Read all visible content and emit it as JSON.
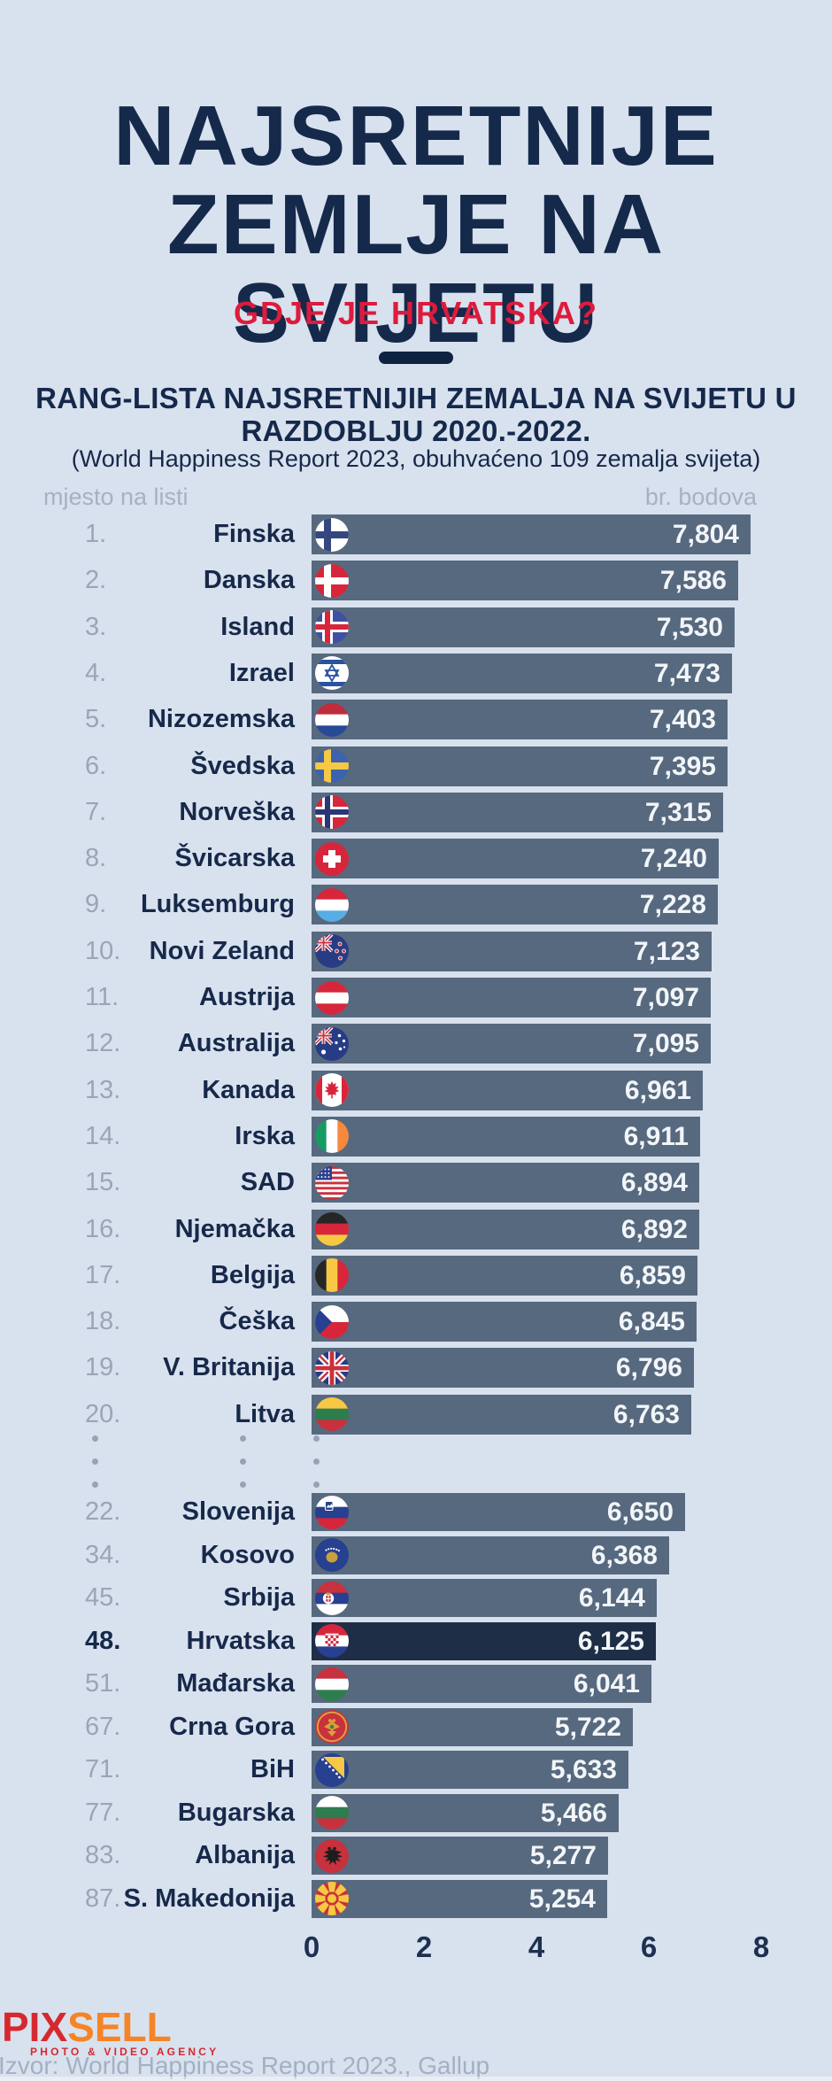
{
  "header": {
    "title": "NAJSRETNIJE\nZEMLJE NA\nSVIJETU",
    "question": "GDJE JE HRVATSKA?",
    "ranking_heading": "RANG-LISTA NAJSRETNIJIH ZEMALJA NA SVIJETU U\nRAZDOBLJU 2020.-2022.",
    "ranking_note": "(World Happiness Report 2023, obuhvaćeno 109 zemalja svijeta)"
  },
  "colors": {
    "background": "#d8e1ee",
    "navy_text": "#15294b",
    "accent_red": "#dd1b3c",
    "bar": "#57697e",
    "bar_highlight": "#1f2e47",
    "rank_gray": "#9aa5b7",
    "value_text": "#f2f5f9",
    "source_gray": "#a4b0c2",
    "logo_red": "#d5292f",
    "logo_orange": "#f58426"
  },
  "chart_data": {
    "type": "bar",
    "orientation": "horizontal",
    "title": "RANG-LISTA NAJSRETNIJIH ZEMALJA NA SVIJETU U RAZDOBLJU 2020.-2022.",
    "subtitle": "(World Happiness Report 2023, obuhvaćeno 109 zemalja svijeta)",
    "columns": {
      "rank": "mjesto na listi",
      "score": "br. bodova"
    },
    "value_axis": {
      "min": 0,
      "max": 8,
      "ticks": [
        0,
        2,
        4,
        6,
        8
      ]
    },
    "legend": "none",
    "highlight_country": "Hrvatska",
    "bar_color": "#57697e",
    "highlight_color": "#1f2e47",
    "ellipsis_between_sections": true,
    "rows": [
      {
        "rank": "1.",
        "country": "Finska",
        "flag": "fi",
        "score": 7.804,
        "score_label": "7,804",
        "section": 1
      },
      {
        "rank": "2.",
        "country": "Danska",
        "flag": "dk",
        "score": 7.586,
        "score_label": "7,586",
        "section": 1
      },
      {
        "rank": "3.",
        "country": "Island",
        "flag": "is",
        "score": 7.53,
        "score_label": "7,530",
        "section": 1
      },
      {
        "rank": "4.",
        "country": "Izrael",
        "flag": "il",
        "score": 7.473,
        "score_label": "7,473",
        "section": 1
      },
      {
        "rank": "5.",
        "country": "Nizozemska",
        "flag": "nl",
        "score": 7.403,
        "score_label": "7,403",
        "section": 1
      },
      {
        "rank": "6.",
        "country": "Švedska",
        "flag": "se",
        "score": 7.395,
        "score_label": "7,395",
        "section": 1
      },
      {
        "rank": "7.",
        "country": "Norveška",
        "flag": "no",
        "score": 7.315,
        "score_label": "7,315",
        "section": 1
      },
      {
        "rank": "8.",
        "country": "Švicarska",
        "flag": "ch",
        "score": 7.24,
        "score_label": "7,240",
        "section": 1
      },
      {
        "rank": "9.",
        "country": "Luksemburg",
        "flag": "lu",
        "score": 7.228,
        "score_label": "7,228",
        "section": 1
      },
      {
        "rank": "10.",
        "country": "Novi Zeland",
        "flag": "nz",
        "score": 7.123,
        "score_label": "7,123",
        "section": 1
      },
      {
        "rank": "11.",
        "country": "Austrija",
        "flag": "at",
        "score": 7.097,
        "score_label": "7,097",
        "section": 1
      },
      {
        "rank": "12.",
        "country": "Australija",
        "flag": "au",
        "score": 7.095,
        "score_label": "7,095",
        "section": 1
      },
      {
        "rank": "13.",
        "country": "Kanada",
        "flag": "ca",
        "score": 6.961,
        "score_label": "6,961",
        "section": 1
      },
      {
        "rank": "14.",
        "country": "Irska",
        "flag": "ie",
        "score": 6.911,
        "score_label": "6,911",
        "section": 1
      },
      {
        "rank": "15.",
        "country": "SAD",
        "flag": "us",
        "score": 6.894,
        "score_label": "6,894",
        "section": 1
      },
      {
        "rank": "16.",
        "country": "Njemačka",
        "flag": "de",
        "score": 6.892,
        "score_label": "6,892",
        "section": 1
      },
      {
        "rank": "17.",
        "country": "Belgija",
        "flag": "be",
        "score": 6.859,
        "score_label": "6,859",
        "section": 1
      },
      {
        "rank": "18.",
        "country": "Češka",
        "flag": "cz",
        "score": 6.845,
        "score_label": "6,845",
        "section": 1
      },
      {
        "rank": "19.",
        "country": "V. Britanija",
        "flag": "gb",
        "score": 6.796,
        "score_label": "6,796",
        "section": 1
      },
      {
        "rank": "20.",
        "country": "Litva",
        "flag": "lt",
        "score": 6.763,
        "score_label": "6,763",
        "section": 1
      },
      {
        "rank": "22.",
        "country": "Slovenija",
        "flag": "si",
        "score": 6.65,
        "score_label": "6,650",
        "section": 2
      },
      {
        "rank": "34.",
        "country": "Kosovo",
        "flag": "xk",
        "score": 6.368,
        "score_label": "6,368",
        "section": 2
      },
      {
        "rank": "45.",
        "country": "Srbija",
        "flag": "rs",
        "score": 6.144,
        "score_label": "6,144",
        "section": 2
      },
      {
        "rank": "48.",
        "country": "Hrvatska",
        "flag": "hr",
        "score": 6.125,
        "score_label": "6,125",
        "section": 2,
        "highlight": true
      },
      {
        "rank": "51.",
        "country": "Mađarska",
        "flag": "hu",
        "score": 6.041,
        "score_label": "6,041",
        "section": 2
      },
      {
        "rank": "67.",
        "country": "Crna Gora",
        "flag": "me",
        "score": 5.722,
        "score_label": "5,722",
        "section": 2
      },
      {
        "rank": "71.",
        "country": "BiH",
        "flag": "ba",
        "score": 5.633,
        "score_label": "5,633",
        "section": 2
      },
      {
        "rank": "77.",
        "country": "Bugarska",
        "flag": "bg",
        "score": 5.466,
        "score_label": "5,466",
        "section": 2
      },
      {
        "rank": "83.",
        "country": "Albanija",
        "flag": "al",
        "score": 5.277,
        "score_label": "5,277",
        "section": 2
      },
      {
        "rank": "87.",
        "country": "S. Makedonija",
        "flag": "mk",
        "score": 5.254,
        "score_label": "5,254",
        "section": 2
      }
    ]
  },
  "footer": {
    "logo_pix": "PIX",
    "logo_sell": "SELL",
    "logo_tagline": "PHOTO & VIDEO AGENCY",
    "source": "Izvor: World Happiness Report 2023., Gallup"
  }
}
